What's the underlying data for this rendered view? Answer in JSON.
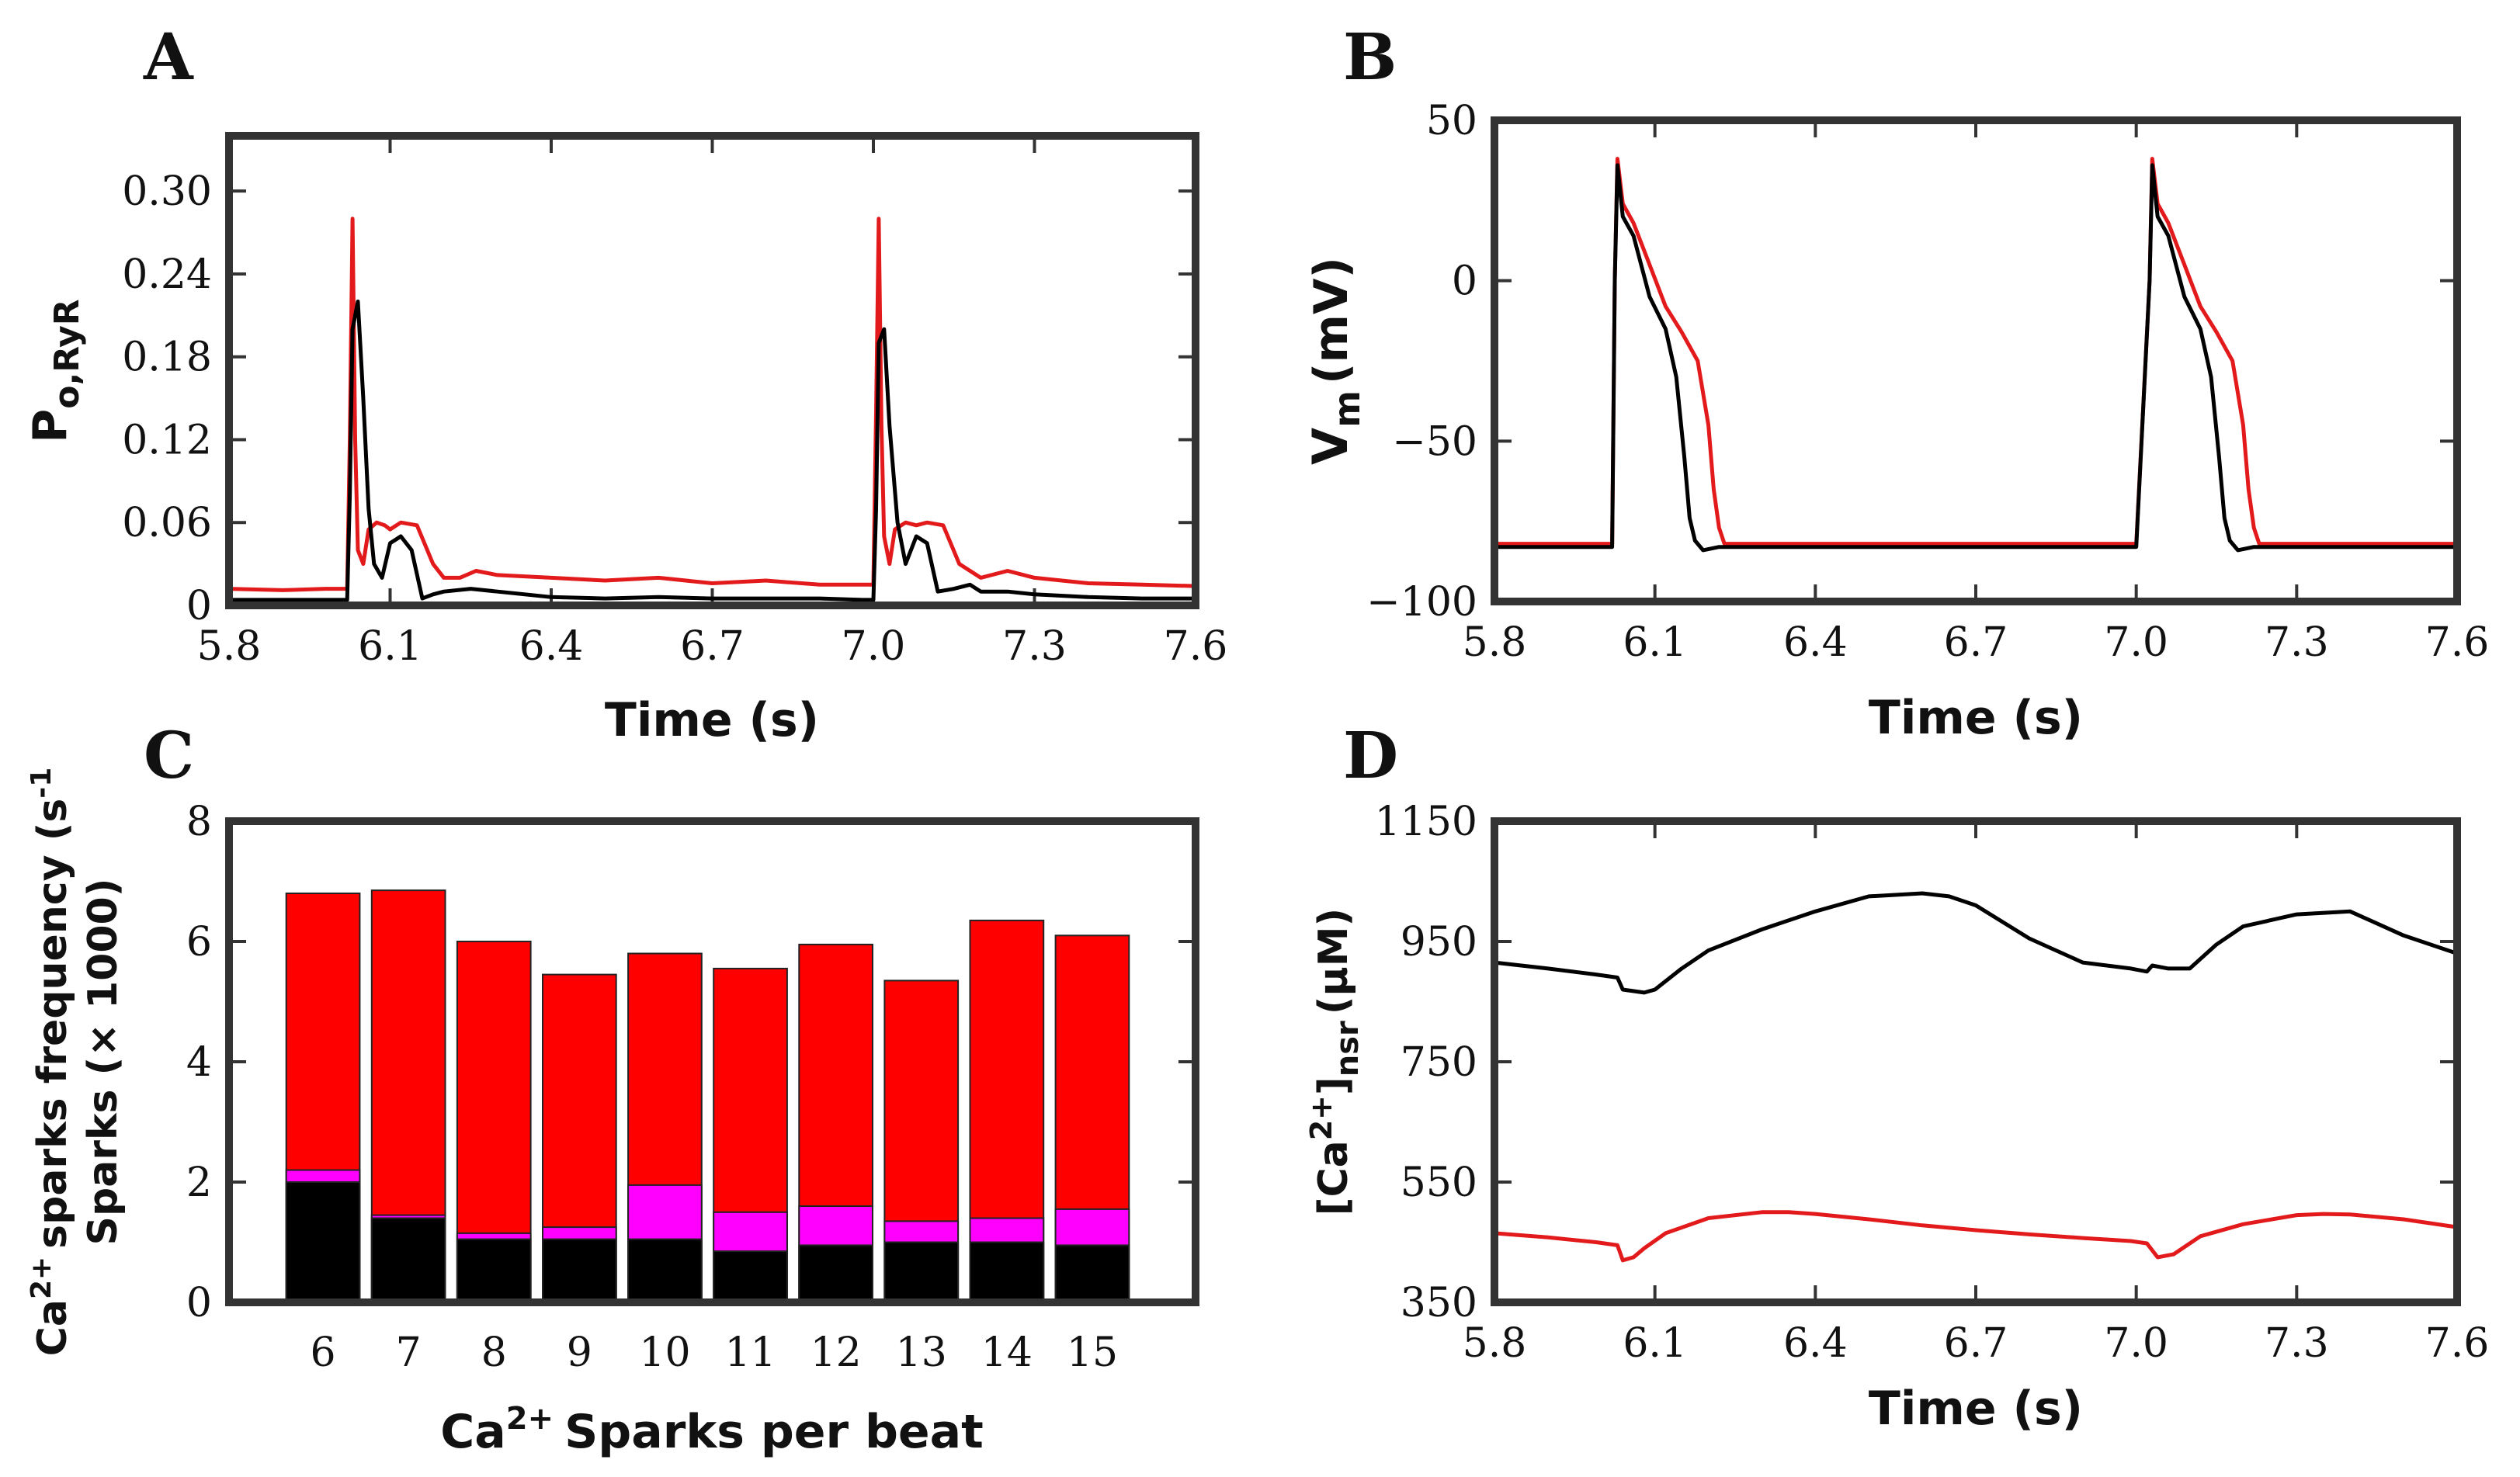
{
  "chart_data": [
    {
      "id": "A",
      "panel_label": "A",
      "type": "line",
      "xlabel": "Time (s)",
      "ylabel": "P",
      "ylabel_sub": "o,RyR",
      "xlim": [
        5.8,
        7.6
      ],
      "ylim": [
        0,
        0.34
      ],
      "xticks": [
        5.8,
        6.1,
        6.4,
        6.7,
        7.0,
        7.3,
        7.6
      ],
      "xtick_labels": [
        "5.8",
        "6.1",
        "6.4",
        "6.7",
        "7.0",
        "7.3",
        "7.6"
      ],
      "yticks": [
        0,
        0.06,
        0.12,
        0.18,
        0.24,
        0.3
      ],
      "ytick_labels": [
        "0",
        "0.06",
        "0.12",
        "0.18",
        "0.24",
        "0.30"
      ],
      "series": [
        {
          "color": "#e31a1c",
          "x": [
            5.8,
            5.9,
            5.98,
            6.02,
            6.025,
            6.03,
            6.035,
            6.04,
            6.05,
            6.06,
            6.075,
            6.09,
            6.1,
            6.12,
            6.15,
            6.18,
            6.2,
            6.23,
            6.26,
            6.3,
            6.4,
            6.5,
            6.6,
            6.7,
            6.8,
            6.9,
            6.98,
            7.0,
            7.005,
            7.01,
            7.015,
            7.02,
            7.03,
            7.04,
            7.06,
            7.08,
            7.1,
            7.13,
            7.16,
            7.2,
            7.25,
            7.3,
            7.4,
            7.5,
            7.6
          ],
          "y": [
            0.012,
            0.011,
            0.012,
            0.012,
            0.12,
            0.28,
            0.12,
            0.04,
            0.03,
            0.055,
            0.06,
            0.058,
            0.055,
            0.06,
            0.058,
            0.03,
            0.02,
            0.02,
            0.025,
            0.022,
            0.02,
            0.018,
            0.02,
            0.016,
            0.018,
            0.015,
            0.015,
            0.015,
            0.14,
            0.28,
            0.13,
            0.05,
            0.03,
            0.055,
            0.06,
            0.058,
            0.06,
            0.058,
            0.03,
            0.02,
            0.025,
            0.02,
            0.016,
            0.015,
            0.014
          ]
        },
        {
          "color": "#000000",
          "x": [
            5.8,
            5.9,
            5.98,
            6.02,
            6.025,
            6.03,
            6.04,
            6.05,
            6.06,
            6.07,
            6.085,
            6.1,
            6.12,
            6.14,
            6.16,
            6.18,
            6.2,
            6.25,
            6.3,
            6.4,
            6.5,
            6.6,
            6.7,
            6.8,
            6.9,
            6.98,
            7.0,
            7.005,
            7.01,
            7.02,
            7.03,
            7.045,
            7.06,
            7.08,
            7.1,
            7.12,
            7.15,
            7.18,
            7.2,
            7.25,
            7.3,
            7.4,
            7.5,
            7.6
          ],
          "y": [
            0.004,
            0.004,
            0.004,
            0.004,
            0.08,
            0.2,
            0.22,
            0.15,
            0.07,
            0.03,
            0.02,
            0.045,
            0.05,
            0.04,
            0.005,
            0.008,
            0.01,
            0.012,
            0.01,
            0.006,
            0.005,
            0.006,
            0.005,
            0.005,
            0.005,
            0.004,
            0.004,
            0.07,
            0.19,
            0.2,
            0.13,
            0.06,
            0.03,
            0.05,
            0.045,
            0.01,
            0.012,
            0.015,
            0.01,
            0.01,
            0.008,
            0.006,
            0.005,
            0.005
          ]
        }
      ]
    },
    {
      "id": "B",
      "panel_label": "B",
      "type": "line",
      "xlabel": "Time (s)",
      "ylabel": "V",
      "ylabel_sub": "m",
      "ylabel_suffix": "(mV)",
      "xlim": [
        5.8,
        7.6
      ],
      "ylim": [
        -100,
        50
      ],
      "xticks": [
        5.8,
        6.1,
        6.4,
        6.7,
        7.0,
        7.3,
        7.6
      ],
      "xtick_labels": [
        "5.8",
        "6.1",
        "6.4",
        "6.7",
        "7.0",
        "7.3",
        "7.6"
      ],
      "yticks": [
        -100,
        -50,
        0,
        50
      ],
      "ytick_labels": [
        "−100",
        "−50",
        "0",
        "50"
      ],
      "series": [
        {
          "color": "#e31a1c",
          "x": [
            5.8,
            6.02,
            6.025,
            6.03,
            6.04,
            6.06,
            6.09,
            6.12,
            6.15,
            6.18,
            6.2,
            6.21,
            6.22,
            6.23,
            6.26,
            7.0,
            7.025,
            7.03,
            7.04,
            7.06,
            7.09,
            7.12,
            7.15,
            7.18,
            7.2,
            7.21,
            7.22,
            7.23,
            7.26,
            7.6
          ],
          "y": [
            -82,
            -82,
            0,
            38,
            24,
            18,
            5,
            -8,
            -16,
            -25,
            -45,
            -65,
            -77,
            -82,
            -82,
            -82,
            0,
            38,
            24,
            18,
            5,
            -8,
            -16,
            -25,
            -45,
            -65,
            -77,
            -82,
            -82,
            -82
          ]
        },
        {
          "color": "#000000",
          "x": [
            5.8,
            6.02,
            6.025,
            6.03,
            6.04,
            6.06,
            6.09,
            6.12,
            6.14,
            6.155,
            6.165,
            6.175,
            6.19,
            6.22,
            7.0,
            7.025,
            7.03,
            7.04,
            7.06,
            7.09,
            7.12,
            7.14,
            7.155,
            7.165,
            7.175,
            7.19,
            7.22,
            7.6
          ],
          "y": [
            -83,
            -83,
            0,
            36,
            20,
            14,
            -5,
            -15,
            -30,
            -55,
            -74,
            -81,
            -84,
            -83,
            -83,
            0,
            36,
            20,
            14,
            -5,
            -15,
            -30,
            -55,
            -74,
            -81,
            -84,
            -83,
            -83
          ]
        }
      ]
    },
    {
      "id": "C",
      "panel_label": "C",
      "type": "bar",
      "stacked": false,
      "xlabel": "Ca",
      "xlabel_sup": "2+",
      "xlabel_suffix": "Sparks per beat",
      "ylabel_line1": "Ca",
      "ylabel_line1_sup": "2+",
      "ylabel_line1_suffix": "sparks frequency (s",
      "ylabel_line1_sup2": "-1",
      "ylabel_line2": "Sparks (× 1000)",
      "ylim": [
        0,
        8
      ],
      "yticks": [
        0,
        2,
        4,
        6,
        8
      ],
      "ytick_labels": [
        "0",
        "2",
        "4",
        "6",
        "8"
      ],
      "categories": [
        "6",
        "7",
        "8",
        "9",
        "10",
        "11",
        "12",
        "13",
        "14",
        "15"
      ],
      "series": [
        {
          "color": "#ff0000",
          "values": [
            6.8,
            6.85,
            6.0,
            5.45,
            5.8,
            5.55,
            5.95,
            5.35,
            6.35,
            6.1
          ]
        },
        {
          "color": "#ff00ff",
          "values": [
            2.2,
            1.45,
            1.15,
            1.25,
            1.95,
            1.5,
            1.6,
            1.35,
            1.4,
            1.55
          ]
        },
        {
          "color": "#000000",
          "values": [
            2.0,
            1.4,
            1.05,
            1.05,
            1.05,
            0.85,
            0.95,
            1.0,
            1.0,
            0.95
          ]
        }
      ]
    },
    {
      "id": "D",
      "panel_label": "D",
      "type": "line",
      "xlabel": "Time (s)",
      "ylabel": "[Ca",
      "ylabel_sup": "2+",
      "ylabel_mid": "]",
      "ylabel_sub": "nsr",
      "ylabel_suffix": "(μM)",
      "xlim": [
        5.8,
        7.6
      ],
      "ylim": [
        350,
        1150
      ],
      "xticks": [
        5.8,
        6.1,
        6.4,
        6.7,
        7.0,
        7.3,
        7.6
      ],
      "xtick_labels": [
        "5.8",
        "6.1",
        "6.4",
        "6.7",
        "7.0",
        "7.3",
        "7.6"
      ],
      "yticks": [
        350,
        550,
        750,
        950,
        1150
      ],
      "ytick_labels": [
        "350",
        "550",
        "750",
        "950",
        "1150"
      ],
      "series": [
        {
          "color": "#000000",
          "x": [
            5.8,
            5.9,
            5.99,
            6.03,
            6.04,
            6.08,
            6.1,
            6.15,
            6.2,
            6.3,
            6.4,
            6.5,
            6.6,
            6.65,
            6.7,
            6.8,
            6.9,
            6.99,
            7.02,
            7.03,
            7.06,
            7.1,
            7.15,
            7.2,
            7.3,
            7.4,
            7.5,
            7.6
          ],
          "y": [
            915,
            905,
            895,
            890,
            870,
            865,
            870,
            905,
            935,
            970,
            1000,
            1025,
            1030,
            1025,
            1010,
            955,
            915,
            905,
            900,
            910,
            905,
            905,
            945,
            975,
            995,
            1000,
            960,
            930
          ]
        },
        {
          "color": "#e31a1c",
          "x": [
            5.8,
            5.9,
            5.99,
            6.03,
            6.04,
            6.06,
            6.08,
            6.12,
            6.2,
            6.3,
            6.35,
            6.4,
            6.5,
            6.6,
            6.7,
            6.8,
            6.9,
            6.99,
            7.02,
            7.04,
            7.07,
            7.12,
            7.2,
            7.3,
            7.35,
            7.4,
            7.5,
            7.6
          ],
          "y": [
            465,
            458,
            450,
            445,
            420,
            425,
            440,
            465,
            490,
            500,
            500,
            497,
            488,
            478,
            470,
            463,
            457,
            452,
            448,
            425,
            430,
            460,
            480,
            495,
            497,
            496,
            488,
            475
          ]
        }
      ]
    }
  ]
}
